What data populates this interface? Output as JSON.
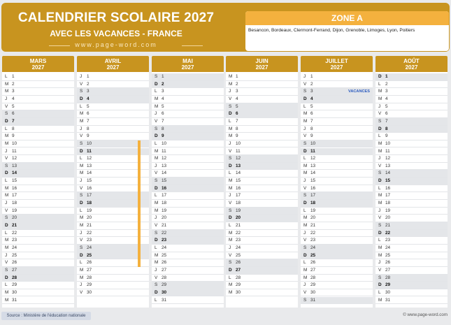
{
  "header": {
    "title": "CALENDRIER SCOLAIRE 2027",
    "subtitle": "AVEC LES VACANCES - FRANCE",
    "website": "www.page-word.com"
  },
  "zone": {
    "title": "ZONE A",
    "cities": "Besancon, Bordeaux, Clermont-Ferrand, Dijon, Grenoble, Limoges, Lyon, Poitiers"
  },
  "vacation_label": "VACANCES",
  "months": [
    {
      "name": "MARS",
      "year": "2027",
      "start": 1,
      "days": 31
    },
    {
      "name": "AVRIL",
      "year": "2027",
      "start": 4,
      "days": 30
    },
    {
      "name": "MAI",
      "year": "2027",
      "start": 6,
      "days": 31
    },
    {
      "name": "JUIN",
      "year": "2027",
      "start": 2,
      "days": 30
    },
    {
      "name": "JUILLET",
      "year": "2027",
      "start": 4,
      "days": 31
    },
    {
      "name": "AOÛT",
      "year": "2027",
      "start": 0,
      "days": 31
    }
  ],
  "day_letters": [
    "D",
    "L",
    "M",
    "M",
    "J",
    "V",
    "S"
  ],
  "vacations": [
    {
      "month": 1,
      "from": 10,
      "to": 26
    }
  ],
  "vacation_markers": [
    {
      "month": 4,
      "day": 3
    }
  ],
  "footer": {
    "source": "Source : Ministère de l'éducation nationale",
    "website": "© www.page-word.com"
  }
}
